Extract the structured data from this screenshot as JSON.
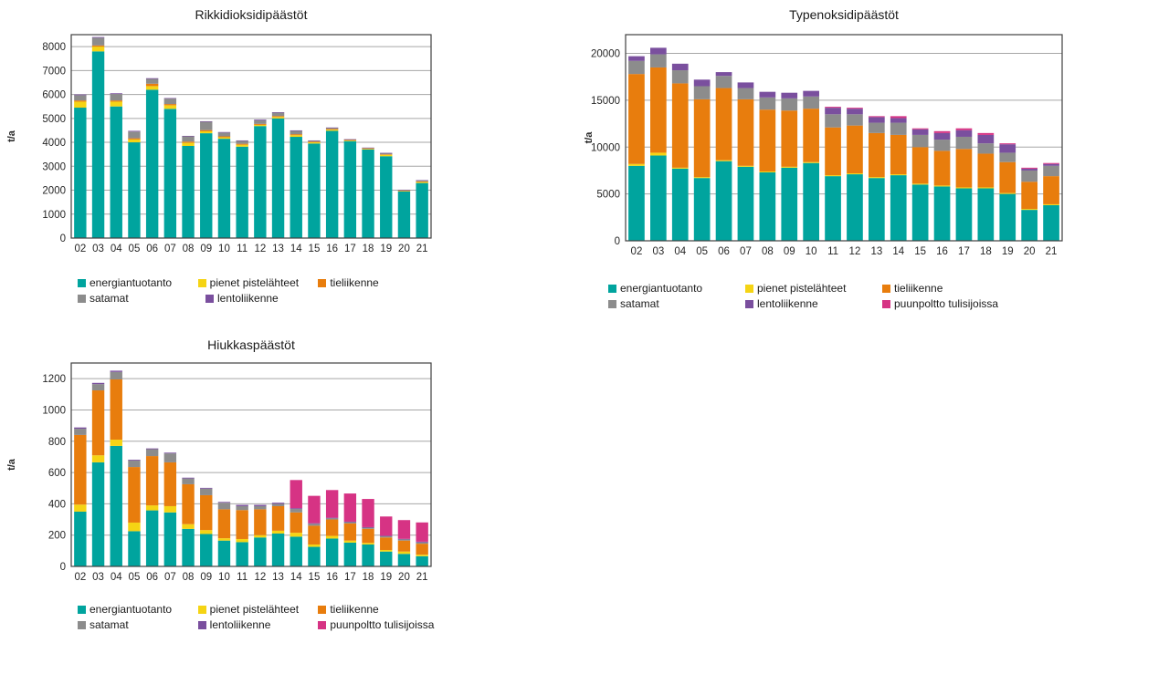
{
  "background": "#FFFFFF",
  "chart_data": [
    {
      "type": "bar",
      "stacked": true,
      "title": "Rikkidioksidipäästöt",
      "ylabel": "t/a",
      "xlabel": "",
      "grid": true,
      "legend_position": "bottom",
      "frame_color": "#404040",
      "grid_color": "#A6A6A6",
      "categories": [
        "02",
        "03",
        "04",
        "05",
        "06",
        "07",
        "08",
        "09",
        "10",
        "11",
        "12",
        "13",
        "14",
        "15",
        "16",
        "17",
        "18",
        "19",
        "20",
        "21"
      ],
      "ylim": [
        0,
        8500
      ],
      "ytick_step": 1000,
      "ytick_max": 8000,
      "series": [
        {
          "name": "energiantuotanto",
          "color": "#00A49E",
          "values": [
            5450,
            7800,
            5500,
            4000,
            6200,
            5400,
            3850,
            4380,
            4150,
            3820,
            4680,
            5000,
            4230,
            3950,
            4480,
            4050,
            3700,
            3420,
            1950,
            2300
          ]
        },
        {
          "name": "pienet pistelähteet",
          "color": "#F5D414",
          "values": [
            250,
            200,
            200,
            120,
            150,
            150,
            130,
            80,
            60,
            80,
            50,
            60,
            70,
            50,
            50,
            30,
            30,
            60,
            20,
            40
          ]
        },
        {
          "name": "tieliikenne",
          "color": "#E87D0D",
          "values": [
            50,
            50,
            50,
            50,
            100,
            50,
            50,
            50,
            40,
            40,
            40,
            40,
            40,
            30,
            30,
            20,
            20,
            20,
            20,
            30
          ]
        },
        {
          "name": "satamat",
          "color": "#8C8C8C",
          "values": [
            220,
            320,
            270,
            280,
            200,
            230,
            220,
            350,
            160,
            120,
            150,
            140,
            140,
            40,
            50,
            20,
            20,
            50,
            20,
            40
          ]
        },
        {
          "name": "lentoliikenne",
          "color": "#7A4F9E",
          "values": [
            30,
            30,
            30,
            30,
            30,
            20,
            20,
            20,
            20,
            20,
            30,
            20,
            20,
            10,
            10,
            10,
            10,
            10,
            5,
            10
          ]
        }
      ],
      "legend_rows": [
        [
          "energiantuotanto",
          "pienet pistelähteet",
          "tieliikenne"
        ],
        [
          "satamat",
          "lentoliikenne"
        ]
      ]
    },
    {
      "type": "bar",
      "stacked": true,
      "title": "Typenoksidipäästöt",
      "ylabel": "t/a",
      "xlabel": "",
      "grid": true,
      "legend_position": "bottom",
      "frame_color": "#404040",
      "grid_color": "#A6A6A6",
      "categories": [
        "02",
        "03",
        "04",
        "05",
        "06",
        "07",
        "08",
        "09",
        "10",
        "11",
        "12",
        "13",
        "14",
        "15",
        "16",
        "17",
        "18",
        "19",
        "20",
        "21"
      ],
      "ylim": [
        0,
        22000
      ],
      "ytick_step": 5000,
      "ytick_max": 20000,
      "series": [
        {
          "name": "energiantuotanto",
          "color": "#00A49E",
          "values": [
            8000,
            9100,
            7700,
            6700,
            8500,
            7900,
            7300,
            7800,
            8300,
            6900,
            7100,
            6700,
            7000,
            6000,
            5800,
            5600,
            5600,
            5000,
            3300,
            3800
          ]
        },
        {
          "name": "pienet pistelähteet",
          "color": "#F5D414",
          "values": [
            200,
            300,
            100,
            100,
            100,
            100,
            100,
            100,
            100,
            100,
            100,
            100,
            100,
            100,
            100,
            100,
            100,
            100,
            100,
            100
          ]
        },
        {
          "name": "tieliikenne",
          "color": "#E87D0D",
          "values": [
            9600,
            9100,
            9000,
            8300,
            7700,
            7100,
            6600,
            6000,
            5700,
            5100,
            5100,
            4700,
            4200,
            3900,
            3700,
            4100,
            3600,
            3300,
            2900,
            3000
          ]
        },
        {
          "name": "satamat",
          "color": "#8C8C8C",
          "values": [
            1400,
            1400,
            1400,
            1400,
            1300,
            1200,
            1300,
            1300,
            1300,
            1400,
            1200,
            1100,
            1300,
            1300,
            1200,
            1300,
            1100,
            1000,
            1200,
            1100
          ]
        },
        {
          "name": "lentoliikenne",
          "color": "#7A4F9E",
          "values": [
            500,
            700,
            700,
            700,
            400,
            600,
            600,
            600,
            600,
            700,
            600,
            600,
            500,
            600,
            700,
            700,
            900,
            900,
            200,
            200
          ]
        },
        {
          "name": "puunpoltto tulisijoissa",
          "color": "#D63384",
          "values": [
            0,
            0,
            0,
            0,
            0,
            0,
            0,
            0,
            0,
            100,
            100,
            100,
            200,
            100,
            200,
            200,
            200,
            100,
            100,
            100
          ]
        }
      ],
      "legend_rows": [
        [
          "energiantuotanto",
          "pienet pistelähteet",
          "tieliikenne"
        ],
        [
          "satamat",
          "lentoliikenne",
          "puunpoltto tulisijoissa"
        ]
      ]
    },
    {
      "type": "bar",
      "stacked": true,
      "title": "Hiukkaspäästöt",
      "ylabel": "t/a",
      "xlabel": "",
      "grid": true,
      "legend_position": "bottom",
      "frame_color": "#404040",
      "grid_color": "#A6A6A6",
      "categories": [
        "02",
        "03",
        "04",
        "05",
        "06",
        "07",
        "08",
        "09",
        "10",
        "11",
        "12",
        "13",
        "14",
        "15",
        "16",
        "17",
        "18",
        "19",
        "20",
        "21"
      ],
      "ylim": [
        0,
        1300
      ],
      "ytick_step": 200,
      "ytick_max": 1200,
      "series": [
        {
          "name": "energiantuotanto",
          "color": "#00A49E",
          "values": [
            350,
            665,
            770,
            225,
            358,
            345,
            240,
            207,
            165,
            155,
            185,
            210,
            190,
            125,
            178,
            152,
            140,
            95,
            80,
            65
          ]
        },
        {
          "name": "pienet pistelähteet",
          "color": "#F5D414",
          "values": [
            45,
            45,
            40,
            55,
            32,
            40,
            30,
            25,
            15,
            20,
            15,
            18,
            25,
            15,
            17,
            13,
            10,
            10,
            15,
            10
          ]
        },
        {
          "name": "tieliikenne",
          "color": "#E87D0D",
          "values": [
            445,
            415,
            385,
            355,
            315,
            280,
            255,
            223,
            185,
            185,
            165,
            157,
            130,
            120,
            105,
            110,
            90,
            80,
            70,
            70
          ]
        },
        {
          "name": "satamat",
          "color": "#8C8C8C",
          "values": [
            40,
            40,
            48,
            42,
            44,
            57,
            37,
            42,
            42,
            25,
            20,
            15,
            22,
            13,
            8,
            8,
            8,
            8,
            8,
            8
          ]
        },
        {
          "name": "lentoliikenne",
          "color": "#7A4F9E",
          "values": [
            8,
            8,
            8,
            5,
            5,
            5,
            5,
            5,
            5,
            8,
            8,
            7,
            5,
            3,
            3,
            3,
            3,
            3,
            3,
            5
          ]
        },
        {
          "name": "puunpoltto tulisijoissa",
          "color": "#D63384",
          "values": [
            0,
            0,
            0,
            0,
            0,
            0,
            0,
            0,
            0,
            0,
            0,
            0,
            180,
            175,
            177,
            180,
            180,
            123,
            120,
            123
          ]
        }
      ],
      "legend_rows": [
        [
          "energiantuotanto",
          "pienet pistelähteet",
          "tieliikenne"
        ],
        [
          "satamat",
          "lentoliikenne",
          "puunpoltto tulisijoissa"
        ]
      ]
    }
  ]
}
